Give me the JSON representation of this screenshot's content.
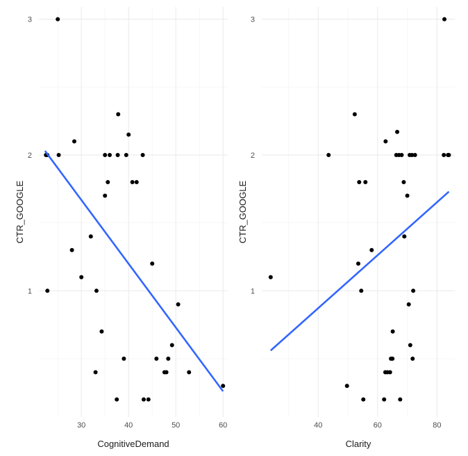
{
  "colors": {
    "point": "#000000",
    "fit_line": "#3366FF",
    "grid": "#EBEBEB"
  },
  "chart_data": [
    {
      "type": "scatter",
      "title": "",
      "xlabel": "CognitiveDemand",
      "ylabel": "CTR_GOOGLE",
      "xlim": [
        21,
        61
      ],
      "ylim": [
        0.07,
        3.09
      ],
      "x_ticks": [
        30,
        40,
        50,
        60
      ],
      "x_tick_labels": [
        "30",
        "40",
        "50",
        "60"
      ],
      "y_ticks": [
        1,
        2,
        3
      ],
      "y_tick_labels": [
        "1",
        "2",
        "3"
      ],
      "grid": true,
      "legend": "none",
      "points": [
        {
          "x": 25.0,
          "y": 3.0
        },
        {
          "x": 22.5,
          "y": 2.0
        },
        {
          "x": 22.8,
          "y": 2.0
        },
        {
          "x": 25.2,
          "y": 2.0
        },
        {
          "x": 28.5,
          "y": 2.1
        },
        {
          "x": 22.8,
          "y": 1.0
        },
        {
          "x": 28.0,
          "y": 1.3
        },
        {
          "x": 30.0,
          "y": 1.1
        },
        {
          "x": 32.0,
          "y": 1.4
        },
        {
          "x": 33.0,
          "y": 0.4
        },
        {
          "x": 33.2,
          "y": 1.0
        },
        {
          "x": 34.3,
          "y": 0.7
        },
        {
          "x": 35.0,
          "y": 1.7
        },
        {
          "x": 35.0,
          "y": 2.0
        },
        {
          "x": 35.6,
          "y": 1.8
        },
        {
          "x": 36.0,
          "y": 2.0
        },
        {
          "x": 37.5,
          "y": 0.2
        },
        {
          "x": 37.7,
          "y": 2.0
        },
        {
          "x": 37.8,
          "y": 2.3
        },
        {
          "x": 39.0,
          "y": 0.5
        },
        {
          "x": 39.5,
          "y": 2.0
        },
        {
          "x": 40.0,
          "y": 2.15
        },
        {
          "x": 40.8,
          "y": 1.8
        },
        {
          "x": 41.7,
          "y": 1.8
        },
        {
          "x": 43.0,
          "y": 2.0
        },
        {
          "x": 43.2,
          "y": 0.2
        },
        {
          "x": 44.2,
          "y": 0.2
        },
        {
          "x": 45.0,
          "y": 1.2
        },
        {
          "x": 45.9,
          "y": 0.5
        },
        {
          "x": 47.6,
          "y": 0.4
        },
        {
          "x": 48.0,
          "y": 0.4
        },
        {
          "x": 48.4,
          "y": 0.5
        },
        {
          "x": 49.2,
          "y": 0.6
        },
        {
          "x": 50.5,
          "y": 0.9
        },
        {
          "x": 52.8,
          "y": 0.4
        },
        {
          "x": 60.0,
          "y": 0.3
        }
      ],
      "fit_line": {
        "x": [
          22.3,
          60.0
        ],
        "y": [
          2.03,
          0.26
        ]
      }
    },
    {
      "type": "scatter",
      "title": "",
      "xlabel": "Clarity",
      "ylabel": "CTR_GOOGLE",
      "xlim": [
        21,
        86
      ],
      "ylim": [
        0.07,
        3.09
      ],
      "x_ticks": [
        40,
        60,
        80
      ],
      "x_tick_labels": [
        "40",
        "60",
        "80"
      ],
      "y_ticks": [
        1,
        2,
        3
      ],
      "y_tick_labels": [
        "1",
        "2",
        "3"
      ],
      "grid": true,
      "legend": "none",
      "points": [
        {
          "x": 24.0,
          "y": 1.1
        },
        {
          "x": 43.5,
          "y": 2.0
        },
        {
          "x": 49.7,
          "y": 0.3
        },
        {
          "x": 52.3,
          "y": 2.3
        },
        {
          "x": 53.5,
          "y": 1.2
        },
        {
          "x": 53.8,
          "y": 1.8
        },
        {
          "x": 54.5,
          "y": 1.0
        },
        {
          "x": 55.2,
          "y": 0.2
        },
        {
          "x": 55.9,
          "y": 1.8
        },
        {
          "x": 58.0,
          "y": 1.3
        },
        {
          "x": 62.2,
          "y": 0.2
        },
        {
          "x": 62.6,
          "y": 0.4
        },
        {
          "x": 62.7,
          "y": 2.1
        },
        {
          "x": 63.3,
          "y": 0.4
        },
        {
          "x": 64.2,
          "y": 0.4
        },
        {
          "x": 64.5,
          "y": 0.5
        },
        {
          "x": 65.0,
          "y": 0.5
        },
        {
          "x": 65.1,
          "y": 0.7
        },
        {
          "x": 66.3,
          "y": 2.0
        },
        {
          "x": 66.6,
          "y": 2.17
        },
        {
          "x": 67.2,
          "y": 2.0
        },
        {
          "x": 67.6,
          "y": 0.2
        },
        {
          "x": 68.1,
          "y": 2.0
        },
        {
          "x": 68.8,
          "y": 1.8
        },
        {
          "x": 69.0,
          "y": 1.4
        },
        {
          "x": 70.0,
          "y": 1.7
        },
        {
          "x": 70.5,
          "y": 0.9
        },
        {
          "x": 70.8,
          "y": 2.0
        },
        {
          "x": 71.0,
          "y": 0.6
        },
        {
          "x": 71.6,
          "y": 2.0
        },
        {
          "x": 71.8,
          "y": 0.5
        },
        {
          "x": 72.0,
          "y": 1.0
        },
        {
          "x": 72.6,
          "y": 2.0
        },
        {
          "x": 82.3,
          "y": 2.0
        },
        {
          "x": 82.5,
          "y": 3.0
        },
        {
          "x": 83.7,
          "y": 2.0
        },
        {
          "x": 84.0,
          "y": 2.0
        }
      ],
      "fit_line": {
        "x": [
          24.0,
          84.0
        ],
        "y": [
          0.56,
          1.73
        ]
      }
    }
  ]
}
